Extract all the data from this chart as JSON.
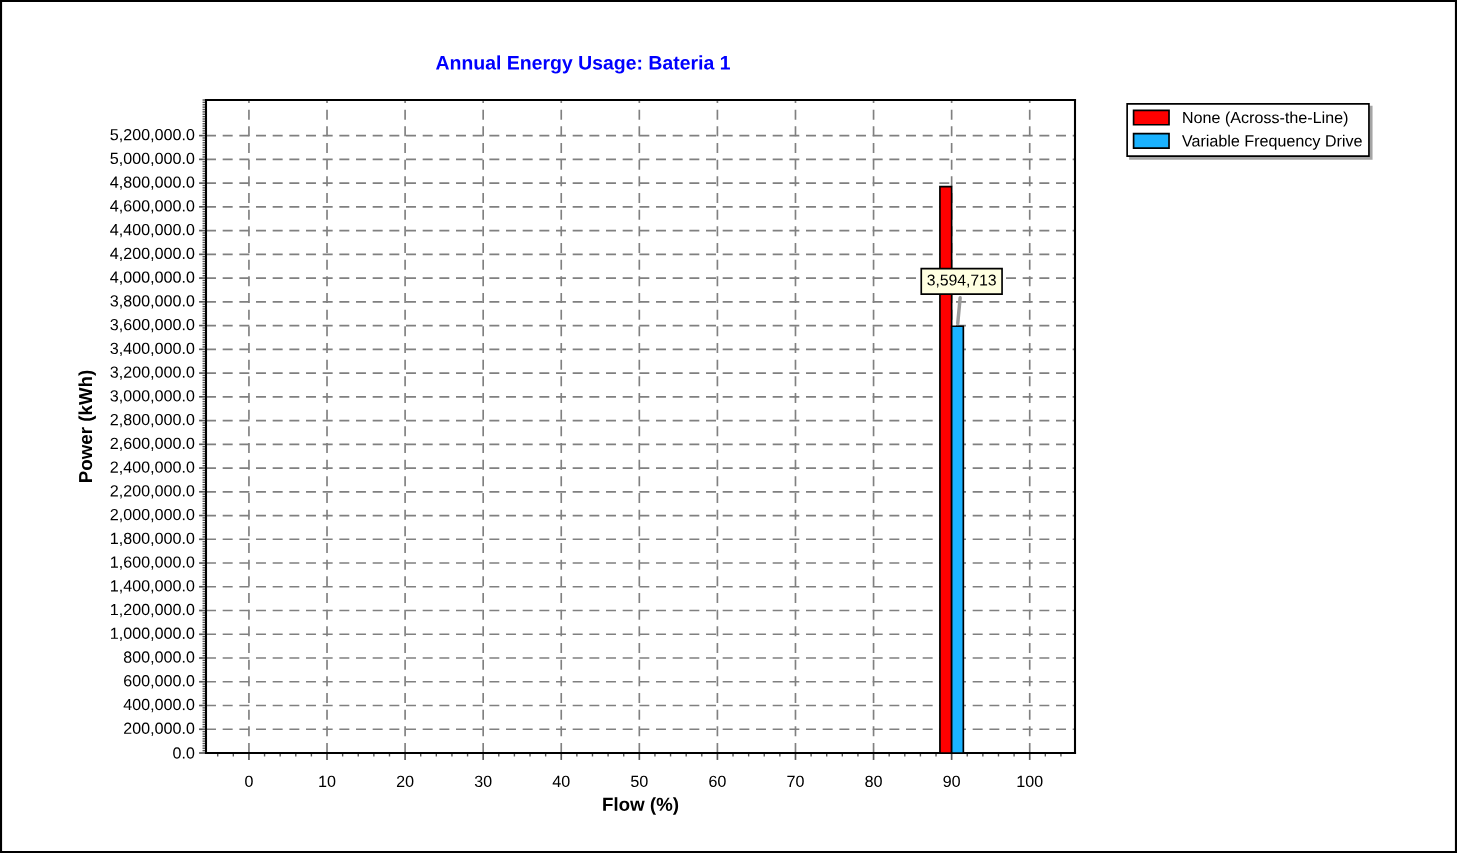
{
  "chart_data": {
    "type": "bar",
    "title": "Annual Energy Usage: Bateria 1",
    "xlabel": "Flow (%)",
    "ylabel": "Power (kWh)",
    "x": [
      90
    ],
    "series": [
      {
        "name": "None (Across-the-Line)",
        "color": "#ff0000",
        "values": [
          4770000
        ]
      },
      {
        "name": "Variable Frequency Drive",
        "color": "#1ab2ff",
        "values": [
          3594713
        ],
        "value_labels": [
          "3,594,713"
        ]
      }
    ],
    "xlim": [
      -5.5,
      105.8
    ],
    "xticks": [
      0,
      10,
      20,
      30,
      40,
      50,
      60,
      70,
      80,
      90,
      100
    ],
    "ylim": [
      0,
      5500000
    ],
    "yticks": [
      {
        "value": 0,
        "label": "0.0"
      },
      {
        "value": 200000,
        "label": "200,000.0"
      },
      {
        "value": 400000,
        "label": "400,000.0"
      },
      {
        "value": 600000,
        "label": "600,000.0"
      },
      {
        "value": 800000,
        "label": "800,000.0"
      },
      {
        "value": 1000000,
        "label": "1,000,000.0"
      },
      {
        "value": 1200000,
        "label": "1,200,000.0"
      },
      {
        "value": 1400000,
        "label": "1,400,000.0"
      },
      {
        "value": 1600000,
        "label": "1,600,000.0"
      },
      {
        "value": 1800000,
        "label": "1,800,000.0"
      },
      {
        "value": 2000000,
        "label": "2,000,000.0"
      },
      {
        "value": 2200000,
        "label": "2,200,000.0"
      },
      {
        "value": 2400000,
        "label": "2,400,000.0"
      },
      {
        "value": 2600000,
        "label": "2,600,000.0"
      },
      {
        "value": 2800000,
        "label": "2,800,000.0"
      },
      {
        "value": 3000000,
        "label": "3,000,000.0"
      },
      {
        "value": 3200000,
        "label": "3,200,000.0"
      },
      {
        "value": 3400000,
        "label": "3,400,000.0"
      },
      {
        "value": 3600000,
        "label": "3,600,000.0"
      },
      {
        "value": 3800000,
        "label": "3,800,000.0"
      },
      {
        "value": 4000000,
        "label": "4,000,000.0"
      },
      {
        "value": 4200000,
        "label": "4,200,000.0"
      },
      {
        "value": 4400000,
        "label": "4,400,000.0"
      },
      {
        "value": 4600000,
        "label": "4,600,000.0"
      },
      {
        "value": 4800000,
        "label": "4,800,000.0"
      },
      {
        "value": 5000000,
        "label": "5,000,000.0"
      },
      {
        "value": 5200000,
        "label": "5,200,000.0"
      }
    ],
    "grid": true,
    "legend": "top right"
  }
}
